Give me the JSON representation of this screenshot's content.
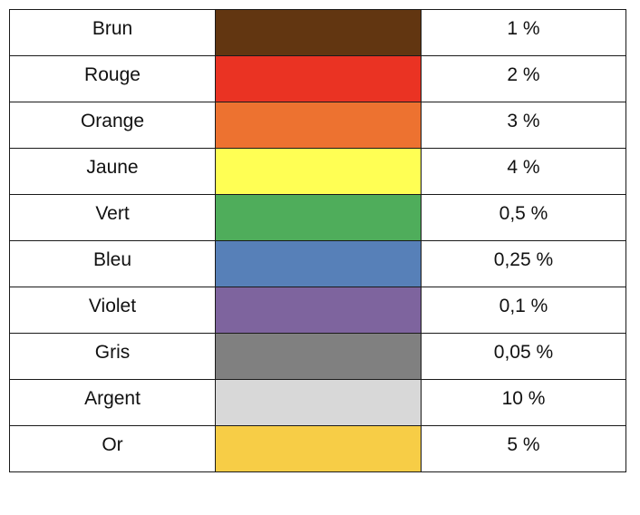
{
  "rows": [
    {
      "name": "Brun",
      "color": "#623611",
      "tolerance": "1 %"
    },
    {
      "name": "Rouge",
      "color": "#EA3323",
      "tolerance": "2 %"
    },
    {
      "name": "Orange",
      "color": "#ED7230",
      "tolerance": "3 %"
    },
    {
      "name": "Jaune",
      "color": "#FFFF54",
      "tolerance": "4 %"
    },
    {
      "name": "Vert",
      "color": "#4FAD5B",
      "tolerance": "0,5 %"
    },
    {
      "name": "Bleu",
      "color": "#5780B8",
      "tolerance": "0,25 %"
    },
    {
      "name": "Violet",
      "color": "#7E649E",
      "tolerance": "0,1 %"
    },
    {
      "name": "Gris",
      "color": "#808080",
      "tolerance": "0,05 %"
    },
    {
      "name": "Argent",
      "color": "#D8D8D8",
      "tolerance": "10 %"
    },
    {
      "name": "Or",
      "color": "#F7CD46",
      "tolerance": "5 %"
    }
  ]
}
